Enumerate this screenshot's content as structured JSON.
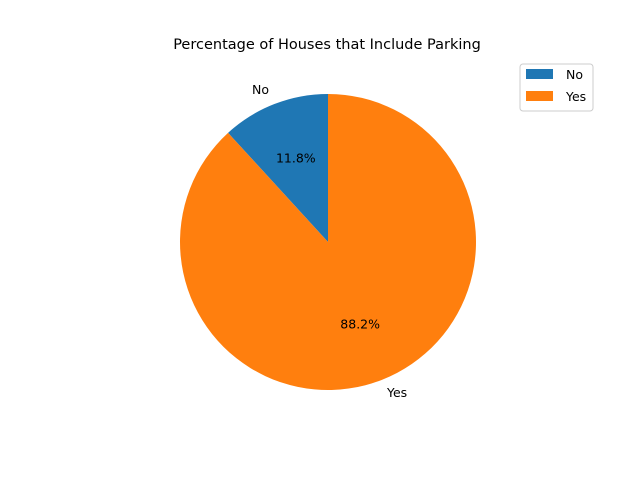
{
  "chart_data": {
    "type": "pie",
    "title": "Percentage of Houses that Include Parking",
    "categories": [
      "No",
      "Yes"
    ],
    "values": [
      11.8,
      88.2
    ],
    "labels": [
      "11.8%",
      "88.2%"
    ],
    "colors": [
      "#1f77b4",
      "#ff7f0e"
    ],
    "start_angle": "top, counter-clockwise",
    "legend": {
      "position": "top-right",
      "entries": [
        "No",
        "Yes"
      ]
    }
  }
}
